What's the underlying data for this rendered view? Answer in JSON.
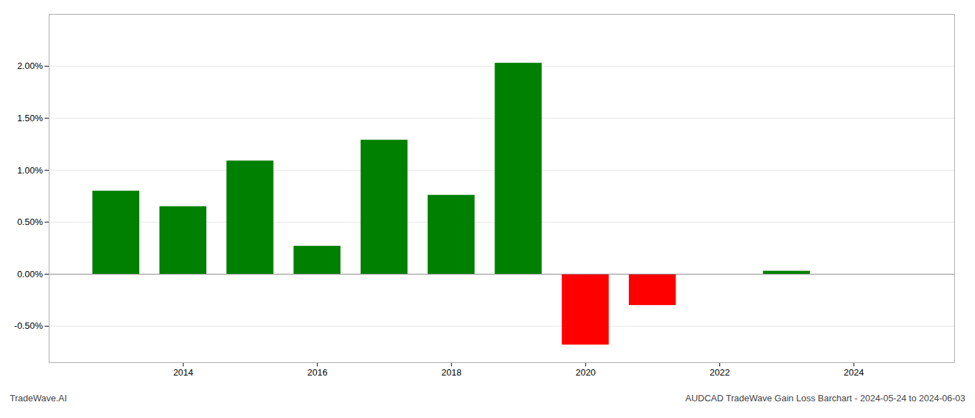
{
  "chart_data": {
    "type": "bar",
    "x": [
      2013,
      2014,
      2015,
      2016,
      2017,
      2018,
      2019,
      2020,
      2021,
      2023
    ],
    "values": [
      0.008,
      0.0065,
      0.0109,
      0.0027,
      0.0129,
      0.0076,
      0.0203,
      -0.0068,
      -0.003,
      0.0003
    ],
    "colors": [
      "#008000",
      "#008000",
      "#008000",
      "#008000",
      "#008000",
      "#008000",
      "#008000",
      "#ff0000",
      "#ff0000",
      "#008000"
    ],
    "xlim": [
      2012.0,
      2025.5
    ],
    "xticks": [
      2014,
      2016,
      2018,
      2020,
      2022,
      2024
    ],
    "ylim": [
      -0.0085,
      0.025
    ],
    "yticks": [
      {
        "value": -0.005,
        "label": "-0.50%"
      },
      {
        "value": 0.0,
        "label": "0.00%"
      },
      {
        "value": 0.005,
        "label": "0.50%"
      },
      {
        "value": 0.01,
        "label": "1.00%"
      },
      {
        "value": 0.015,
        "label": "1.50%"
      },
      {
        "value": 0.02,
        "label": "2.00%"
      }
    ],
    "grid": true,
    "annotations": [
      "TradeWave.AI",
      "AUDCAD TradeWave Gain Loss Barchart - 2024-05-24 to 2024-06-03"
    ]
  }
}
